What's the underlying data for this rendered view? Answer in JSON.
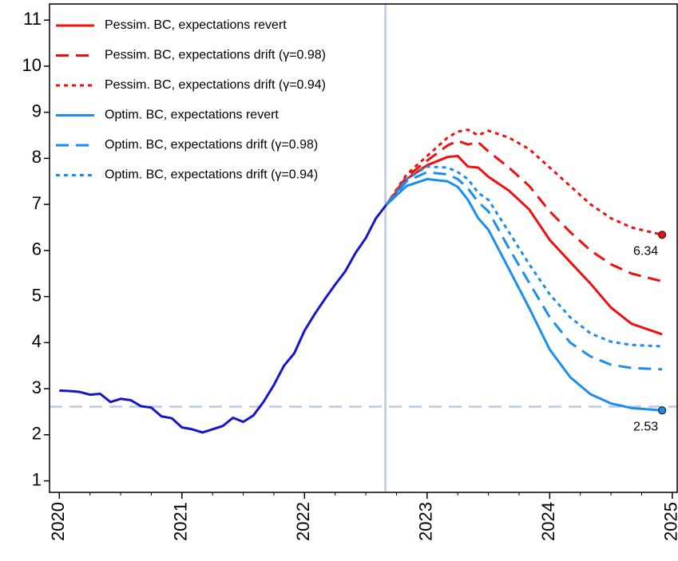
{
  "chart_data": {
    "type": "line",
    "x": [
      2020,
      2020.083,
      2020.167,
      2020.25,
      2020.333,
      2020.417,
      2020.5,
      2020.583,
      2020.667,
      2020.75,
      2020.833,
      2020.917,
      2021,
      2021.083,
      2021.167,
      2021.25,
      2021.333,
      2021.417,
      2021.5,
      2021.583,
      2021.667,
      2021.75,
      2021.833,
      2021.917,
      2022,
      2022.083,
      2022.167,
      2022.25,
      2022.333,
      2022.417,
      2022.5,
      2022.583,
      2022.667,
      2022.833,
      2023,
      2023.167,
      2023.25,
      2023.333,
      2023.417,
      2023.5,
      2023.667,
      2023.833,
      2024,
      2024.167,
      2024.333,
      2024.5,
      2024.667,
      2024.917
    ],
    "series": [
      {
        "color": "#1616c8",
        "dash": "solid",
        "values": [
          2.96,
          2.95,
          2.93,
          2.87,
          2.89,
          2.71,
          2.78,
          2.75,
          2.62,
          2.59,
          2.4,
          2.36,
          2.16,
          2.12,
          2.05,
          2.12,
          2.19,
          2.37,
          2.28,
          2.42,
          2.72,
          3.08,
          3.5,
          3.77,
          4.26,
          4.62,
          4.95,
          5.26,
          5.55,
          5.95,
          6.27,
          6.7,
          6.99,
          null,
          null,
          null,
          null,
          null,
          null,
          null,
          null,
          null,
          null,
          null,
          null,
          null,
          null,
          null
        ]
      },
      {
        "name": "Pessim. BC, expectations revert",
        "color": "#ee1111",
        "dash": "solid",
        "values": [
          null,
          null,
          null,
          null,
          null,
          null,
          null,
          null,
          null,
          null,
          null,
          null,
          null,
          null,
          null,
          null,
          null,
          null,
          null,
          null,
          null,
          null,
          null,
          null,
          null,
          null,
          null,
          null,
          null,
          null,
          null,
          null,
          6.99,
          7.55,
          7.85,
          8.03,
          8.05,
          7.82,
          7.8,
          7.6,
          7.3,
          6.89,
          6.23,
          5.75,
          5.28,
          4.76,
          4.41,
          4.18
        ]
      },
      {
        "name": "Pessim. BC, expectations drift (γ=0.98)",
        "color": "#ee1111",
        "dash": "dashed",
        "values": [
          null,
          null,
          null,
          null,
          null,
          null,
          null,
          null,
          null,
          null,
          null,
          null,
          null,
          null,
          null,
          null,
          null,
          null,
          null,
          null,
          null,
          null,
          null,
          null,
          null,
          null,
          null,
          null,
          null,
          null,
          null,
          null,
          6.99,
          7.6,
          7.95,
          8.28,
          8.38,
          8.3,
          8.35,
          8.15,
          7.8,
          7.4,
          6.85,
          6.4,
          6.0,
          5.7,
          5.5,
          5.33
        ]
      },
      {
        "name": "Pessim. BC, expectations drift (γ=0.94)",
        "color": "#ee1111",
        "dash": "dotted",
        "label_last": true,
        "values": [
          null,
          null,
          null,
          null,
          null,
          null,
          null,
          null,
          null,
          null,
          null,
          null,
          null,
          null,
          null,
          null,
          null,
          null,
          null,
          null,
          null,
          null,
          null,
          null,
          null,
          null,
          null,
          null,
          null,
          null,
          null,
          null,
          6.99,
          7.65,
          8.05,
          8.45,
          8.58,
          8.62,
          8.5,
          8.6,
          8.45,
          8.2,
          7.8,
          7.4,
          7.0,
          6.7,
          6.5,
          6.34
        ]
      },
      {
        "name": "Optim. BC, expectations revert",
        "color": "#1a8ef0",
        "dash": "solid",
        "label_last": true,
        "values": [
          null,
          null,
          null,
          null,
          null,
          null,
          null,
          null,
          null,
          null,
          null,
          null,
          null,
          null,
          null,
          null,
          null,
          null,
          null,
          null,
          null,
          null,
          null,
          null,
          null,
          null,
          null,
          null,
          null,
          null,
          null,
          null,
          6.99,
          7.4,
          7.55,
          7.5,
          7.38,
          7.1,
          6.7,
          6.45,
          5.6,
          4.75,
          3.85,
          3.25,
          2.88,
          2.68,
          2.58,
          2.53
        ]
      },
      {
        "name": "Optim. BC, expectations drift (γ=0.98)",
        "color": "#1a8ef0",
        "dash": "dashed",
        "values": [
          null,
          null,
          null,
          null,
          null,
          null,
          null,
          null,
          null,
          null,
          null,
          null,
          null,
          null,
          null,
          null,
          null,
          null,
          null,
          null,
          null,
          null,
          null,
          null,
          null,
          null,
          null,
          null,
          null,
          null,
          null,
          null,
          6.99,
          7.5,
          7.7,
          7.65,
          7.55,
          7.35,
          7.05,
          6.85,
          6.05,
          5.3,
          4.55,
          4.0,
          3.7,
          3.52,
          3.45,
          3.42
        ]
      },
      {
        "name": "Optim. BC, expectations drift (γ=0.94)",
        "color": "#1a8ef0",
        "dash": "dotted",
        "values": [
          null,
          null,
          null,
          null,
          null,
          null,
          null,
          null,
          null,
          null,
          null,
          null,
          null,
          null,
          null,
          null,
          null,
          null,
          null,
          null,
          null,
          null,
          null,
          null,
          null,
          null,
          null,
          null,
          null,
          null,
          null,
          null,
          6.99,
          7.55,
          7.82,
          7.8,
          7.7,
          7.55,
          7.25,
          7.1,
          6.4,
          5.7,
          5.05,
          4.55,
          4.2,
          4.02,
          3.95,
          3.92
        ]
      }
    ],
    "xlim": [
      2019.92,
      2025.04
    ],
    "xticks": [
      2020,
      2021,
      2022,
      2023,
      2024,
      2025
    ],
    "xminorticks": [
      2020.25,
      2020.5,
      2020.75,
      2021.25,
      2021.5,
      2021.75,
      2022.25,
      2022.5,
      2022.75,
      2023.25,
      2023.5,
      2023.75,
      2024.25,
      2024.5,
      2024.75
    ],
    "ylim": [
      0.75,
      11.35
    ],
    "yticks": [
      1,
      2,
      3,
      4,
      5,
      6,
      7,
      8,
      9,
      10,
      11
    ],
    "vline": 2022.66,
    "hline": 2.61,
    "refline_color": "#c5d0de",
    "legend": "top-left"
  }
}
